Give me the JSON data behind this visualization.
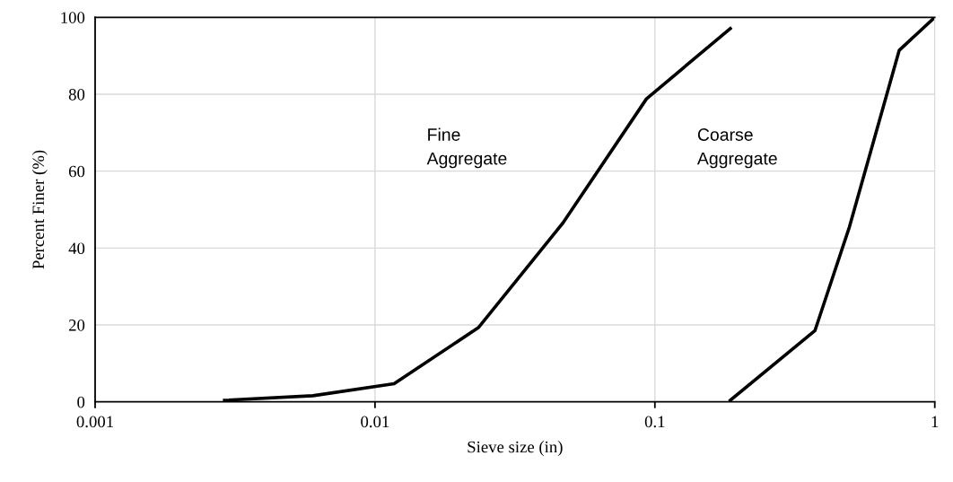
{
  "chart_data": {
    "type": "line",
    "xlabel": "Sieve size (in)",
    "ylabel": "Percent Finer (%)",
    "log": "x",
    "xlim": [
      0.001,
      1
    ],
    "xticks": [
      0.001,
      0.01,
      0.1,
      1
    ],
    "ylim": [
      0,
      100
    ],
    "yticks": [
      0,
      20,
      40,
      60,
      80,
      100
    ],
    "grid": true,
    "line_style": "solid",
    "marker": "none",
    "series": [
      {
        "color": "#000000",
        "x": [
          0.0029,
          0.006,
          0.0117,
          0.0234,
          0.0469,
          0.0933,
          0.186
        ],
        "values": [
          0.4,
          1.6,
          4.7,
          19.3,
          46.5,
          78.8,
          97.1
        ]
      },
      {
        "color": "#000000",
        "x": [
          0.186,
          0.373,
          0.495,
          0.746,
          1.0
        ],
        "values": [
          0.4,
          18.5,
          45.4,
          91.4,
          100
        ]
      }
    ],
    "annotations": [
      "Fine\nAggregate",
      "Coarse\nAggregate"
    ]
  }
}
